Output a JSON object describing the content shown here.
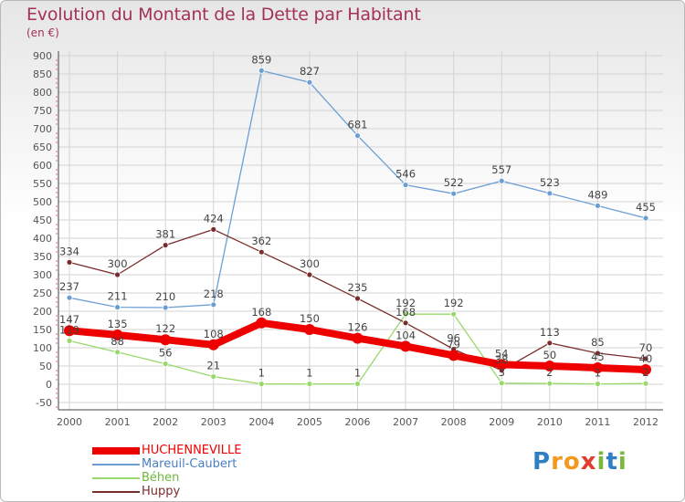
{
  "title": "Evolution du Montant de la Dette par Habitant",
  "subtitle": "(en €)",
  "logo": {
    "text": "Proxiti",
    "letters": [
      "P",
      "r",
      "o",
      "x",
      "i",
      "t",
      "i"
    ],
    "colors": [
      "#2f7fc4",
      "#f39a1d",
      "#f39a1d",
      "#e43c2d",
      "#79b83a",
      "#2f7fc4",
      "#79b83a"
    ]
  },
  "colors": {
    "title": "#a3315a",
    "axis": "#555555",
    "grid": "#cfcfcf"
  },
  "chart_data": {
    "type": "line",
    "x": [
      "2000",
      "2001",
      "2002",
      "2003",
      "2004",
      "2005",
      "2006",
      "2007",
      "2008",
      "2009",
      "2010",
      "2011",
      "2012"
    ],
    "ylim": [
      -50,
      900
    ],
    "yticks": [
      -50,
      0,
      50,
      100,
      150,
      200,
      250,
      300,
      350,
      400,
      450,
      500,
      550,
      600,
      650,
      700,
      750,
      800,
      850,
      900
    ],
    "grid": true,
    "legend_position": "bottom-left",
    "series": [
      {
        "name": "HUCHENNEVILLE",
        "color": "#ee0000",
        "width": 8,
        "marker": 10,
        "values": [
          147,
          135,
          122,
          108,
          168,
          150,
          126,
          104,
          79,
          54,
          50,
          45,
          40
        ],
        "labels": [
          "147",
          "135",
          "122",
          "108",
          "168",
          "150",
          "126",
          "104",
          "79",
          "54",
          "50",
          "45",
          "40"
        ]
      },
      {
        "name": "Mareuil-Caubert",
        "color": "#6b9fd4",
        "width": 1.3,
        "marker": 3,
        "values": [
          237,
          211,
          210,
          218,
          859,
          827,
          681,
          546,
          522,
          557,
          523,
          489,
          455
        ],
        "labels": [
          "237",
          "211",
          "210",
          "218",
          "859",
          "827",
          "681",
          "546",
          "522",
          "557",
          "523",
          "489",
          "455"
        ]
      },
      {
        "name": "Béhen",
        "color": "#99d96a",
        "width": 1.3,
        "marker": 3,
        "values": [
          119,
          88,
          56,
          21,
          1,
          1,
          1,
          192,
          192,
          3,
          2,
          1,
          2
        ],
        "labels": [
          "119",
          "88",
          "56",
          "21",
          "1",
          "1",
          "1",
          "192",
          "192",
          "3",
          "2",
          "1",
          "2"
        ]
      },
      {
        "name": "Huppy",
        "color": "#7a2d2d",
        "width": 1.3,
        "marker": 3,
        "values": [
          334,
          300,
          381,
          424,
          362,
          300,
          235,
          168,
          96,
          38,
          113,
          85,
          70
        ],
        "labels": [
          "334",
          "300",
          "381",
          "424",
          "362",
          "300",
          "235",
          "168",
          "96",
          "38",
          "113",
          "85",
          "70"
        ]
      }
    ]
  }
}
